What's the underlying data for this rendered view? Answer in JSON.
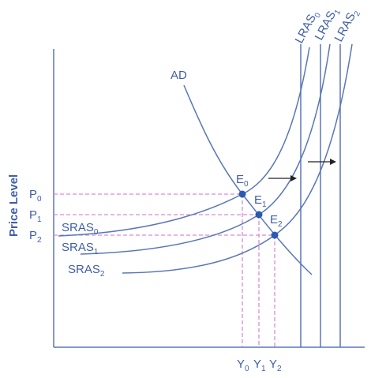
{
  "diagram": {
    "y_axis_label": "Price Level",
    "curves": {
      "ad": "AD",
      "sras0": {
        "base": "SRAS",
        "sub": "0"
      },
      "sras1": {
        "base": "SRAS",
        "sub": "1"
      },
      "sras2": {
        "base": "SRAS",
        "sub": "2"
      },
      "lras0": {
        "base": "LRAS",
        "sub": "0"
      },
      "lras1": {
        "base": "LRAS",
        "sub": "1"
      },
      "lras2": {
        "base": "LRAS",
        "sub": "2"
      }
    },
    "points": {
      "e0": {
        "base": "E",
        "sub": "0"
      },
      "e1": {
        "base": "E",
        "sub": "1"
      },
      "e2": {
        "base": "E",
        "sub": "2"
      }
    },
    "price_levels": {
      "p0": {
        "base": "P",
        "sub": "0"
      },
      "p1": {
        "base": "P",
        "sub": "1"
      },
      "p2": {
        "base": "P",
        "sub": "2"
      }
    },
    "output_levels": {
      "y0": {
        "base": "Y",
        "sub": "0"
      },
      "y1": {
        "base": "Y",
        "sub": "1"
      },
      "y2": {
        "base": "Y",
        "sub": "2"
      }
    },
    "colors": {
      "curve": "#5a76b8",
      "text": "#3f5ea8",
      "dashed": "#d98bd9",
      "point": "#2b59b3",
      "arrow": "#222222",
      "axis": "#5a76b8"
    }
  }
}
